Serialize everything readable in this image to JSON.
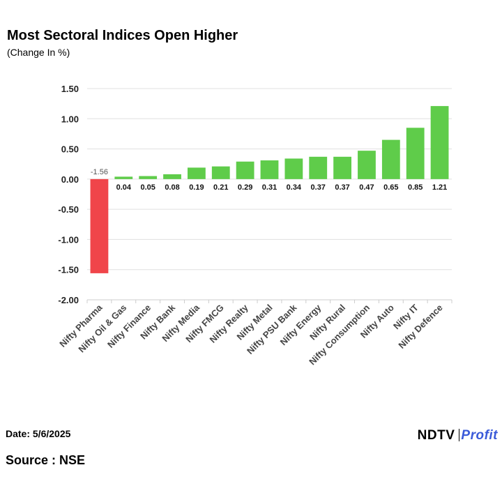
{
  "title": "Most Sectoral Indices Open Higher",
  "subtitle": "(Change In %)",
  "footer": {
    "date": "Date: 5/6/2025",
    "source": "Source : NSE",
    "logo_part1": "NDTV",
    "logo_part2": "Profit"
  },
  "colors": {
    "positive": "#5fcc4a",
    "negative": "#f0454a",
    "grid": "#e0e0e0"
  },
  "chart_data": {
    "type": "bar",
    "title": "Most Sectoral Indices Open Higher",
    "ylabel": "(Change In %)",
    "ylim": [
      -2.0,
      1.5
    ],
    "yticks": [
      1.5,
      1.0,
      0.5,
      0.0,
      -0.5,
      -1.0,
      -1.5,
      -2.0
    ],
    "ytick_labels": [
      "1.50",
      "1.00",
      "0.50",
      "0.00",
      "-0.50",
      "-1.00",
      "-1.50",
      "-2.00"
    ],
    "categories": [
      "Nifty Pharma",
      "Nifty Oil & Gas",
      "Nifty Finance",
      "Nifty Bank",
      "Nifty Media",
      "Nifty FMCG",
      "Nifty Realty",
      "Nifty Metal",
      "Nifty PSU Bank",
      "Nifty Energy",
      "Nifty Rural",
      "Nifty Consumption",
      "Nifty Auto",
      "Nifty IT",
      "Nifty Defence"
    ],
    "values": [
      -1.56,
      0.04,
      0.05,
      0.08,
      0.19,
      0.21,
      0.29,
      0.31,
      0.34,
      0.37,
      0.37,
      0.47,
      0.65,
      0.85,
      1.21
    ],
    "value_labels": [
      "-1.56",
      "0.04",
      "0.05",
      "0.08",
      "0.19",
      "0.21",
      "0.29",
      "0.31",
      "0.34",
      "0.37",
      "0.37",
      "0.47",
      "0.65",
      "0.85",
      "1.21"
    ]
  }
}
